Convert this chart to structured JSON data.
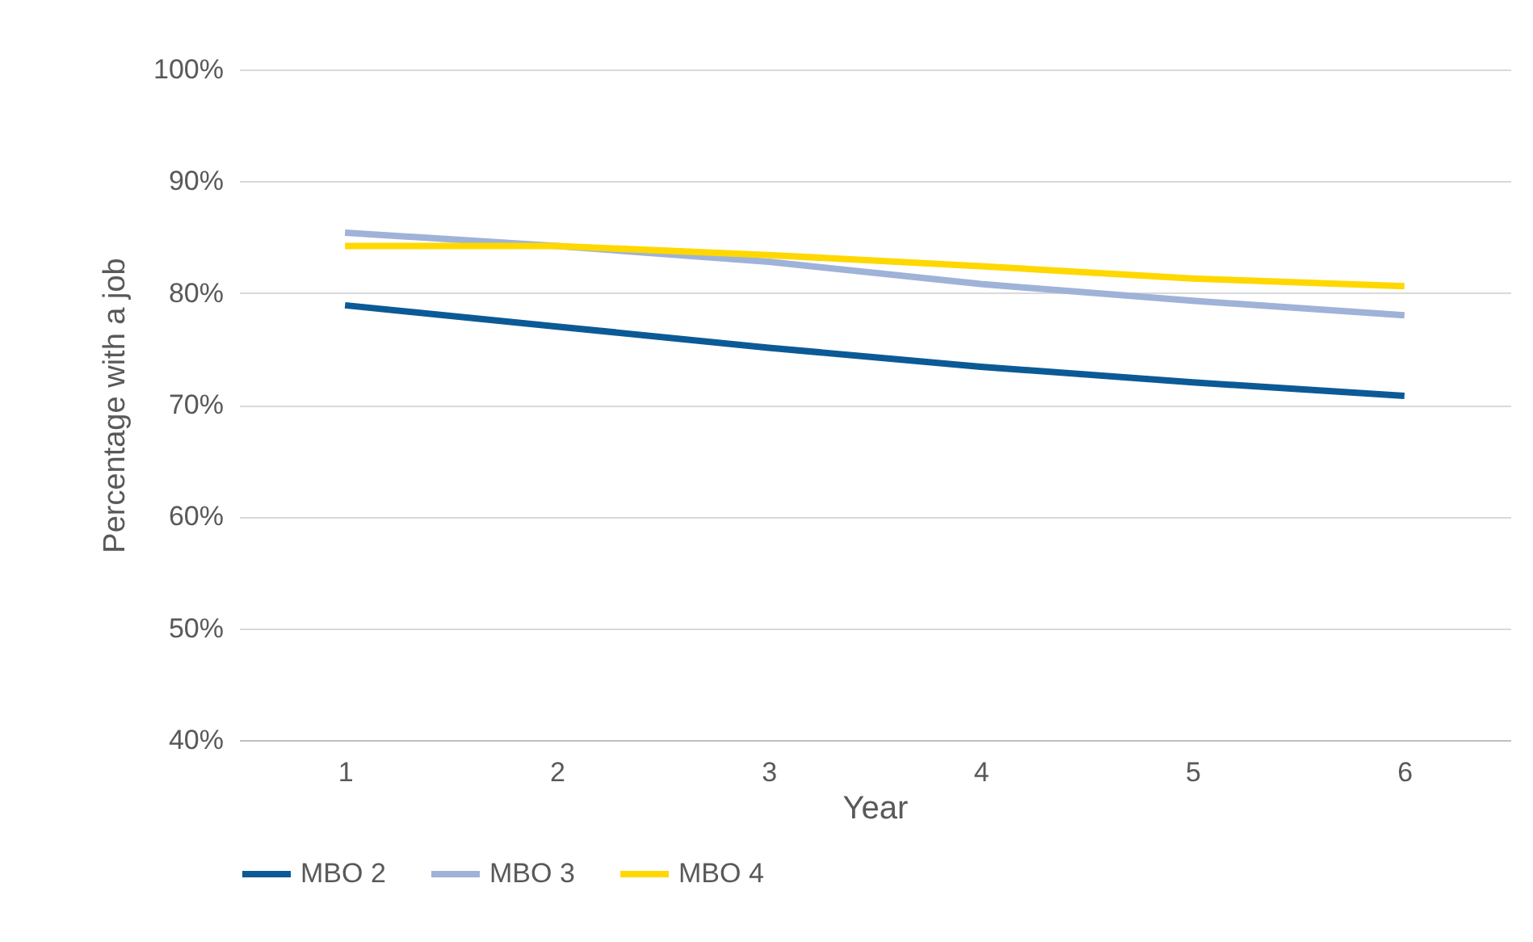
{
  "chart_data": {
    "type": "line",
    "xlabel": "Year",
    "ylabel": "Percentage with a job",
    "categories": [
      "1",
      "2",
      "3",
      "4",
      "5",
      "6"
    ],
    "series": [
      {
        "name": "MBO 2",
        "color": "#0b5a96",
        "values": [
          78.9,
          77.0,
          75.1,
          73.4,
          72.0,
          70.8
        ]
      },
      {
        "name": "MBO 3",
        "color": "#9fb2d8",
        "values": [
          85.4,
          84.2,
          82.8,
          80.8,
          79.3,
          78.0
        ]
      },
      {
        "name": "MBO 4",
        "color": "#ffd800",
        "values": [
          84.2,
          84.2,
          83.4,
          82.4,
          81.3,
          80.6
        ]
      }
    ],
    "ylim": [
      40,
      100
    ],
    "yticks": [
      {
        "value": 40,
        "label": "40%"
      },
      {
        "value": 50,
        "label": "50%"
      },
      {
        "value": 60,
        "label": "60%"
      },
      {
        "value": 70,
        "label": "70%"
      },
      {
        "value": 80,
        "label": "80%"
      },
      {
        "value": 90,
        "label": "90%"
      },
      {
        "value": 100,
        "label": "100%"
      }
    ],
    "grid": "y",
    "legend": "bottom",
    "marker": "none",
    "line_style": "solid"
  }
}
